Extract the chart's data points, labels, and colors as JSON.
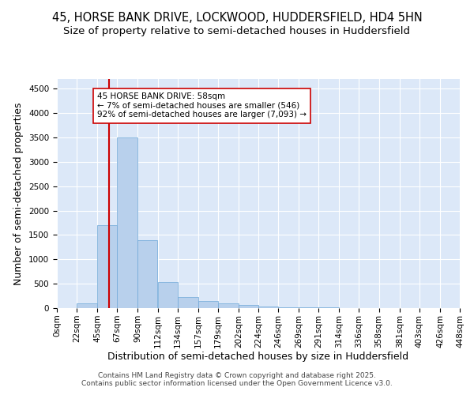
{
  "title_line1": "45, HORSE BANK DRIVE, LOCKWOOD, HUDDERSFIELD, HD4 5HN",
  "title_line2": "Size of property relative to semi-detached houses in Huddersfield",
  "xlabel": "Distribution of semi-detached houses by size in Huddersfield",
  "ylabel": "Number of semi-detached properties",
  "bin_labels": [
    "0sqm",
    "22sqm",
    "45sqm",
    "67sqm",
    "90sqm",
    "112sqm",
    "134sqm",
    "157sqm",
    "179sqm",
    "202sqm",
    "224sqm",
    "246sqm",
    "269sqm",
    "291sqm",
    "314sqm",
    "336sqm",
    "358sqm",
    "381sqm",
    "403sqm",
    "426sqm",
    "448sqm"
  ],
  "bin_edges": [
    0,
    22,
    45,
    67,
    90,
    112,
    134,
    157,
    179,
    202,
    224,
    246,
    269,
    291,
    314,
    336,
    358,
    381,
    403,
    426,
    448
  ],
  "bar_heights": [
    0,
    100,
    1700,
    3500,
    1400,
    530,
    230,
    150,
    100,
    60,
    35,
    20,
    15,
    10,
    8,
    5,
    3,
    3,
    2,
    1,
    0
  ],
  "bar_color": "#b8d0ec",
  "bar_edge_color": "#6ea8d8",
  "property_size": 58,
  "property_line_color": "#cc0000",
  "annotation_line1": "45 HORSE BANK DRIVE: 58sqm",
  "annotation_line2": "← 7% of semi-detached houses are smaller (546)",
  "annotation_line3": "92% of semi-detached houses are larger (7,093) →",
  "annotation_box_color": "#ffffff",
  "annotation_box_edge": "#cc0000",
  "ylim": [
    0,
    4700
  ],
  "yticks": [
    0,
    500,
    1000,
    1500,
    2000,
    2500,
    3000,
    3500,
    4000,
    4500
  ],
  "xlim": [
    0,
    448
  ],
  "background_color": "#dce8f8",
  "footer_text": "Contains HM Land Registry data © Crown copyright and database right 2025.\nContains public sector information licensed under the Open Government Licence v3.0.",
  "title_fontsize": 10.5,
  "subtitle_fontsize": 9.5,
  "axis_label_fontsize": 9,
  "tick_fontsize": 7.5,
  "footer_fontsize": 6.5
}
